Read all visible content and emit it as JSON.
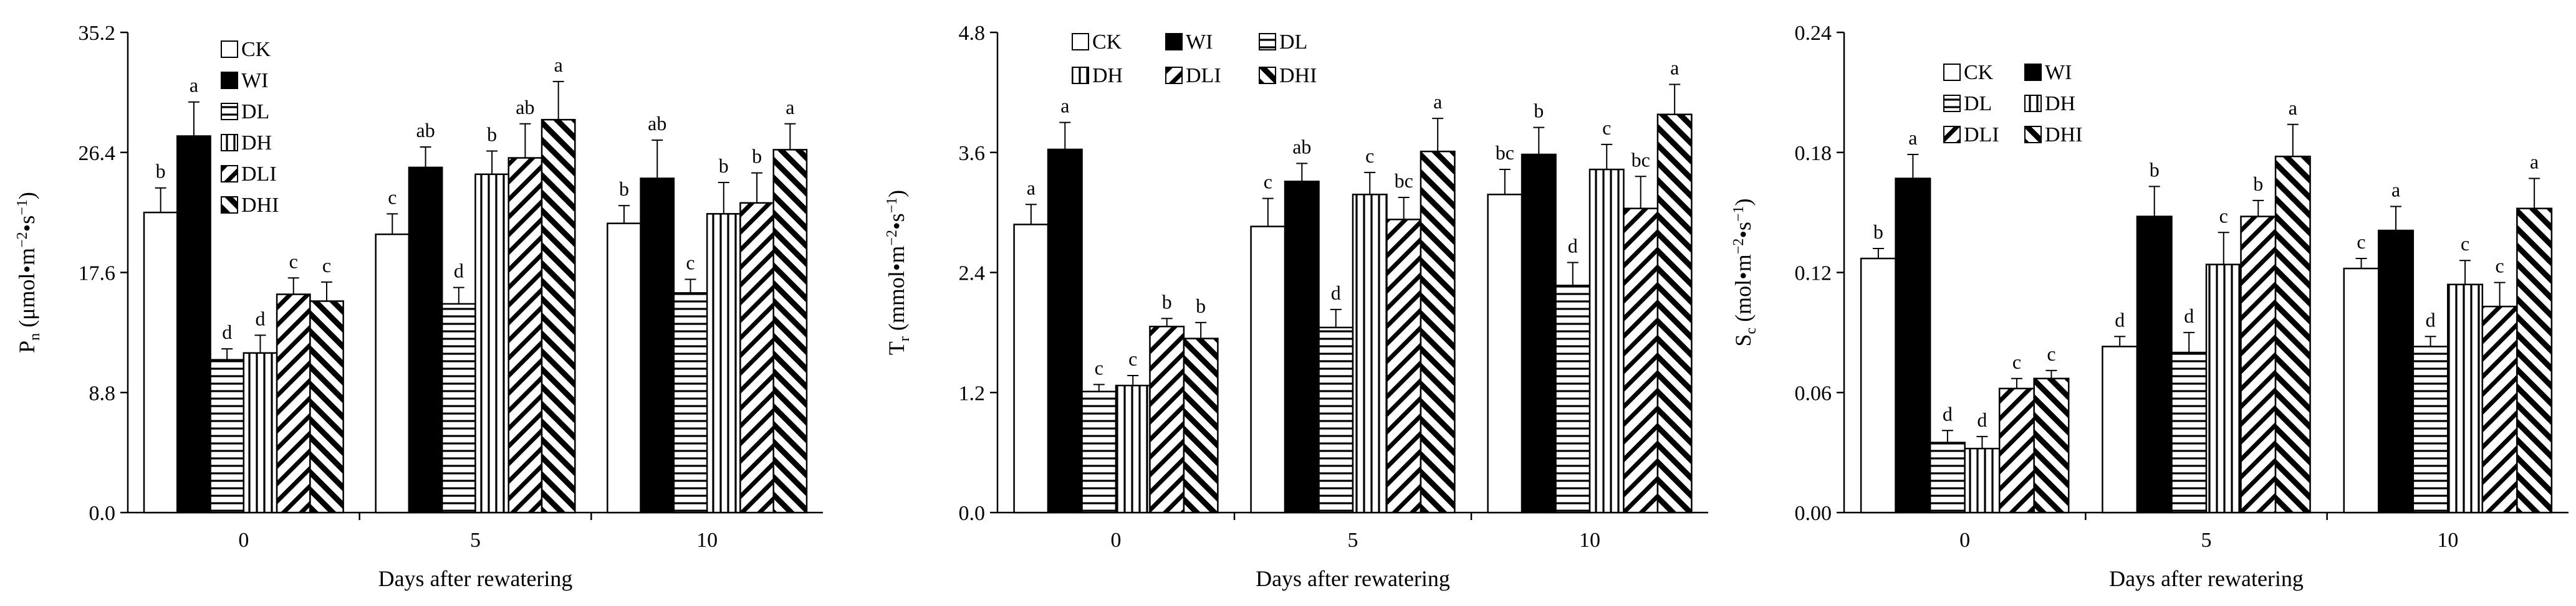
{
  "figure": {
    "panels": [
      {
        "y_symbol": "P",
        "y_sub": "n",
        "y_unit": " (μmol•m",
        "y_exp1": "−2",
        "y_mid": "•s",
        "y_exp2": "−1",
        "y_close": ")"
      },
      {
        "y_symbol": "T",
        "y_sub": "r",
        "y_unit": " (mmol•m",
        "y_exp1": "−2",
        "y_mid": "•s",
        "y_exp2": "−1",
        "y_close": ")"
      },
      {
        "y_symbol": "S",
        "y_sub": "c",
        "y_unit": " (mol•m",
        "y_exp1": "−2",
        "y_mid": "•s",
        "y_exp2": "−1",
        "y_close": ")"
      }
    ]
  },
  "chart_data": [
    {
      "type": "bar",
      "title": "",
      "xlabel": "Days after rewatering",
      "ylabel": "Pn (μmol•m−2•s−1)",
      "ylim": [
        0,
        35.2
      ],
      "yticks": [
        "0.0",
        "8.8",
        "17.6",
        "26.4",
        "35.2"
      ],
      "categories": [
        "0",
        "5",
        "10"
      ],
      "series": [
        {
          "name": "CK",
          "values": [
            22.0,
            20.4,
            21.2
          ],
          "errors": [
            1.8,
            1.5,
            1.3
          ],
          "letters": [
            "b",
            "c",
            "b"
          ]
        },
        {
          "name": "WI",
          "values": [
            27.6,
            25.3,
            24.5
          ],
          "errors": [
            2.5,
            1.5,
            2.8
          ],
          "letters": [
            "a",
            "ab",
            "ab"
          ]
        },
        {
          "name": "DL",
          "values": [
            11.2,
            15.3,
            16.1
          ],
          "errors": [
            0.8,
            1.2,
            1.0
          ],
          "letters": [
            "d",
            "d",
            "c"
          ]
        },
        {
          "name": "DH",
          "values": [
            11.7,
            24.8,
            21.9
          ],
          "errors": [
            1.3,
            1.7,
            2.3
          ],
          "letters": [
            "d",
            "b",
            "b"
          ]
        },
        {
          "name": "DLI",
          "values": [
            16.0,
            26.0,
            22.7
          ],
          "errors": [
            1.2,
            2.5,
            2.2
          ],
          "letters": [
            "c",
            "ab",
            "b"
          ]
        },
        {
          "name": "DHI",
          "values": [
            15.5,
            28.8,
            26.6
          ],
          "errors": [
            1.4,
            2.8,
            1.9
          ],
          "letters": [
            "c",
            "a",
            "a"
          ]
        }
      ]
    },
    {
      "type": "bar",
      "title": "",
      "xlabel": "Days after rewatering",
      "ylabel": "Tr (mmol•m−2•s−1)",
      "ylim": [
        0,
        4.8
      ],
      "yticks": [
        "0.0",
        "1.2",
        "2.4",
        "3.6",
        "4.8"
      ],
      "categories": [
        "0",
        "5",
        "10"
      ],
      "series": [
        {
          "name": "CK",
          "values": [
            2.88,
            2.86,
            3.18
          ],
          "errors": [
            0.2,
            0.28,
            0.25
          ],
          "letters": [
            "a",
            "c",
            "bc"
          ]
        },
        {
          "name": "WI",
          "values": [
            3.63,
            3.31,
            3.58
          ],
          "errors": [
            0.27,
            0.18,
            0.27
          ],
          "letters": [
            "a",
            "ab",
            "b"
          ]
        },
        {
          "name": "DL",
          "values": [
            1.21,
            1.85,
            2.27
          ],
          "errors": [
            0.07,
            0.18,
            0.23
          ],
          "letters": [
            "c",
            "d",
            "d"
          ]
        },
        {
          "name": "DH",
          "values": [
            1.27,
            3.18,
            3.43
          ],
          "errors": [
            0.1,
            0.22,
            0.25
          ],
          "letters": [
            "c",
            "c",
            "c"
          ]
        },
        {
          "name": "DLI",
          "values": [
            1.86,
            2.93,
            3.04
          ],
          "errors": [
            0.08,
            0.22,
            0.32
          ],
          "letters": [
            "b",
            "bc",
            "bc"
          ]
        },
        {
          "name": "DHI",
          "values": [
            1.74,
            3.61,
            3.98
          ],
          "errors": [
            0.16,
            0.33,
            0.3
          ],
          "letters": [
            "b",
            "a",
            "a"
          ]
        }
      ]
    },
    {
      "type": "bar",
      "title": "",
      "xlabel": "Days after rewatering",
      "ylabel": "Sc (mol•m−2•s−1)",
      "ylim": [
        0,
        0.24
      ],
      "yticks": [
        "0.00",
        "0.06",
        "0.12",
        "0.18",
        "0.24"
      ],
      "categories": [
        "0",
        "5",
        "10"
      ],
      "series": [
        {
          "name": "CK",
          "values": [
            0.127,
            0.083,
            0.122
          ],
          "errors": [
            0.005,
            0.005,
            0.005
          ],
          "letters": [
            "b",
            "d",
            "c"
          ]
        },
        {
          "name": "WI",
          "values": [
            0.167,
            0.148,
            0.141
          ],
          "errors": [
            0.012,
            0.015,
            0.012
          ],
          "letters": [
            "a",
            "b",
            "a"
          ]
        },
        {
          "name": "DL",
          "values": [
            0.035,
            0.08,
            0.083
          ],
          "errors": [
            0.006,
            0.01,
            0.005
          ],
          "letters": [
            "d",
            "d",
            "d"
          ]
        },
        {
          "name": "DH",
          "values": [
            0.032,
            0.124,
            0.114
          ],
          "errors": [
            0.006,
            0.016,
            0.012
          ],
          "letters": [
            "d",
            "c",
            "c"
          ]
        },
        {
          "name": "DLI",
          "values": [
            0.062,
            0.148,
            0.103
          ],
          "errors": [
            0.005,
            0.008,
            0.012
          ],
          "letters": [
            "c",
            "b",
            "c"
          ]
        },
        {
          "name": "DHI",
          "values": [
            0.067,
            0.178,
            0.152
          ],
          "errors": [
            0.004,
            0.016,
            0.015
          ],
          "letters": [
            "c",
            "a",
            "a"
          ]
        }
      ]
    }
  ]
}
